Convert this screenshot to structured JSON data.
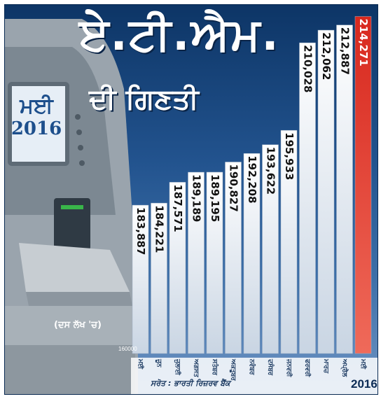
{
  "title": "ਏ.ਟੀ.ਐਮ.",
  "subtitle": "ਦੀ ਗਿਣਤੀ",
  "screen": {
    "month": "ਮਈ",
    "year": "2016"
  },
  "unit_note": "(ਦਸ ਲੱਖ 'ਚ)",
  "source": "ਸਰੋਤ : ਭਾਰਤੀ ਰਿਜ਼ਰਵ ਬੈਂਕ",
  "year_label": "2016",
  "colors": {
    "background": "#1f4f88",
    "bar": "#ffffff",
    "highlight_bar": "#d8281e",
    "text": "#111111"
  },
  "chart_data": {
    "type": "bar",
    "categories": [
      "ਮਈ",
      "ਜੂਨ",
      "ਜੁਲਾਈ",
      "ਅਗਸਤ",
      "ਸਤੰਬਰ",
      "ਅਕਤੂਬਰ",
      "ਨਵੰਬਰ",
      "ਦਸੰਬਰ",
      "ਜਨਵਰੀ",
      "ਫਰਵਰੀ",
      "ਮਾਰਚ",
      "ਅਪ੍ਰੈਲ",
      "ਮਈ"
    ],
    "values": [
      183887,
      184221,
      187571,
      189189,
      189195,
      190827,
      192208,
      193622,
      195933,
      210028,
      212062,
      212887,
      214271
    ],
    "value_labels": [
      "183,887",
      "184,221",
      "187,571",
      "189,189",
      "189,195",
      "190,827",
      "192,208",
      "193,622",
      "195,933",
      "210,028",
      "212,062",
      "212,887",
      "214,271"
    ],
    "highlight_index": 12,
    "baseline_label": "160000",
    "ylim": [
      160000,
      215000
    ],
    "xlabel": "",
    "ylabel": ""
  }
}
